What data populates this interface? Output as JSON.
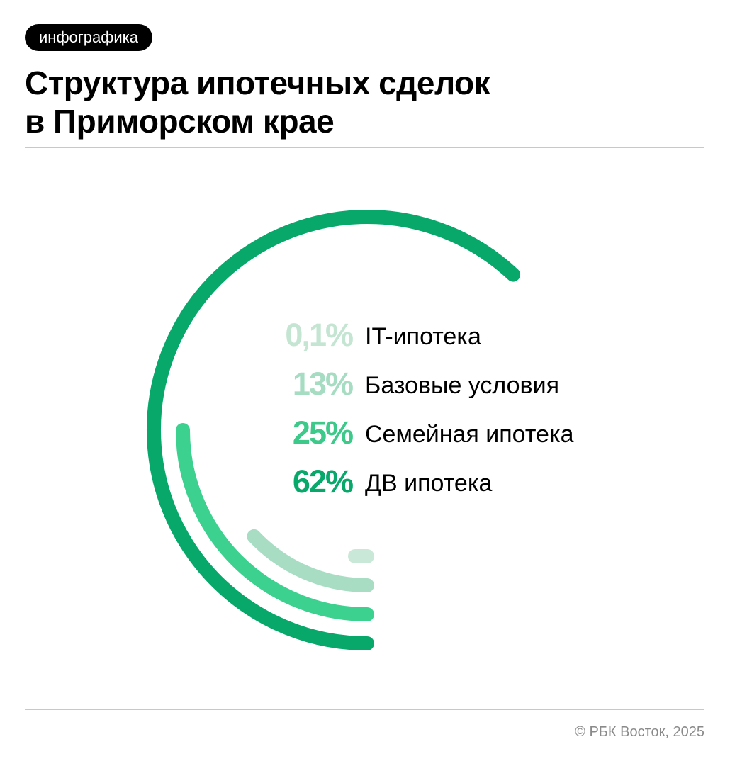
{
  "header": {
    "badge": "инфографика",
    "title_line1": "Структура ипотечных сделок",
    "title_line2": "в Приморском крае"
  },
  "chart_data": {
    "type": "radial-bar",
    "title": "Структура ипотечных сделок в Приморском крае",
    "series": [
      {
        "label": "IT-ипотека",
        "value": 0.1,
        "value_label": "0,1%",
        "color": "#c9e8d7",
        "text_color": "#c4e5d2"
      },
      {
        "label": "Базовые условия",
        "value": 13,
        "value_label": "13%",
        "color": "#a8ddc4",
        "text_color": "#a6dcc2"
      },
      {
        "label": "Семейная ипотека",
        "value": 25,
        "value_label": "25%",
        "color": "#3dd190",
        "text_color": "#3dc98a"
      },
      {
        "label": "ДВ ипотека",
        "value": 62,
        "value_label": "62%",
        "color": "#07a86a",
        "text_color": "#07a86a"
      }
    ]
  },
  "footer": {
    "credit": "© РБК Восток, 2025"
  }
}
